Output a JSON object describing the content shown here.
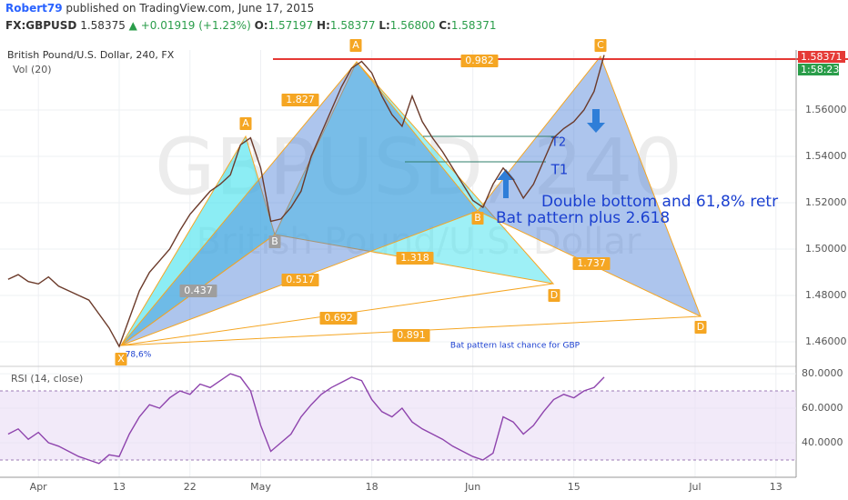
{
  "header": {
    "author": "Robert79",
    "published": "published on TradingView.com, June 17, 2015",
    "symbol": "FX:GBPUSD",
    "last": "1.58375",
    "change": "+0.01919 (+1.23%)",
    "open_label": "O:",
    "open": "1.57197",
    "high_label": "H:",
    "high": "1.58377",
    "low_label": "L:",
    "low": "1.56800",
    "close_label": "C:",
    "close": "1.58371"
  },
  "chart_data": [
    {
      "type": "line",
      "title": "British Pound/U.S. Dollar, 240, FX",
      "subtitle": "Vol (20)",
      "watermark": "GBPUSD, 240",
      "watermark_subtitle": "British Pound/U.S. Dollar",
      "color": "#6b3a2a",
      "x": [
        -3,
        -2,
        -1,
        0,
        1,
        2,
        3,
        4,
        5,
        6,
        7,
        8,
        9,
        10,
        11,
        12,
        13,
        14,
        15,
        16,
        17,
        18,
        19,
        20,
        21,
        22,
        23,
        24,
        25,
        26,
        27,
        28,
        29,
        30,
        31,
        32,
        33,
        34,
        35,
        36,
        37,
        38,
        39,
        40,
        41,
        42,
        43,
        44,
        45,
        46,
        47,
        48,
        49,
        50,
        51,
        52,
        53,
        54,
        55,
        56
      ],
      "values": [
        1.487,
        1.489,
        1.486,
        1.485,
        1.488,
        1.484,
        1.482,
        1.48,
        1.478,
        1.472,
        1.466,
        1.458,
        1.47,
        1.482,
        1.49,
        1.495,
        1.5,
        1.508,
        1.515,
        1.52,
        1.525,
        1.528,
        1.532,
        1.545,
        1.548,
        1.535,
        1.512,
        1.513,
        1.518,
        1.525,
        1.54,
        1.55,
        1.56,
        1.57,
        1.578,
        1.581,
        1.576,
        1.566,
        1.558,
        1.553,
        1.566,
        1.555,
        1.548,
        1.542,
        1.535,
        1.528,
        1.521,
        1.518,
        1.528,
        1.535,
        1.53,
        1.522,
        1.528,
        1.538,
        1.548,
        1.552,
        1.555,
        1.56,
        1.568,
        1.5837
      ],
      "xlim": [
        -3.8,
        75
      ],
      "xticks": [
        {
          "value": 0,
          "label": "Apr"
        },
        {
          "value": 8,
          "label": "13"
        },
        {
          "value": 15,
          "label": "22"
        },
        {
          "value": 22,
          "label": "May"
        },
        {
          "value": 33,
          "label": "18"
        },
        {
          "value": 43,
          "label": "Jun"
        },
        {
          "value": 53,
          "label": "15"
        },
        {
          "value": 65,
          "label": "Jul"
        },
        {
          "value": 73,
          "label": "13"
        }
      ],
      "ylim": [
        1.4506,
        1.5859
      ],
      "yticks": [
        {
          "value": 1.46,
          "label": "1.46000"
        },
        {
          "value": 1.48,
          "label": "1.48000"
        },
        {
          "value": 1.5,
          "label": "1.50000"
        },
        {
          "value": 1.52,
          "label": "1.52000"
        },
        {
          "value": 1.54,
          "label": "1.54000"
        },
        {
          "value": 1.56,
          "label": "1.56000"
        }
      ],
      "grid": true,
      "last_price_label": "1.58371",
      "countdown": "1:58:23",
      "annotations": [
        "A",
        "C",
        "A",
        "B",
        "B",
        "D",
        "D",
        "X",
        "1.827",
        "0.982",
        "0.517",
        "0.437",
        "1.318",
        "1.737",
        "0.692",
        "0.891",
        "78,6%",
        "Bat pattern last chance for GBP",
        "Double bottom and 61,8% retr",
        "Bat  pattern plus 2.618",
        "T1",
        "T2"
      ]
    },
    {
      "type": "line",
      "title": "RSI (14, close)",
      "color": "#8e44ad",
      "values": [
        45,
        48,
        42,
        46,
        40,
        38,
        35,
        32,
        30,
        28,
        33,
        32,
        45,
        55,
        62,
        60,
        66,
        70,
        68,
        74,
        72,
        76,
        80,
        78,
        70,
        50,
        35,
        40,
        45,
        55,
        62,
        68,
        72,
        75,
        78,
        76,
        65,
        58,
        55,
        60,
        52,
        48,
        45,
        42,
        38,
        35,
        32,
        30,
        34,
        55,
        52,
        45,
        50,
        58,
        65,
        68,
        66,
        70,
        72,
        78
      ],
      "ylim": [
        22.6,
        83.2
      ],
      "yticks": [
        {
          "value": 40,
          "label": "40.0000"
        },
        {
          "value": 60,
          "label": "60.0000"
        },
        {
          "value": 80,
          "label": "80.0000"
        }
      ],
      "bands": [
        30,
        70
      ]
    }
  ]
}
